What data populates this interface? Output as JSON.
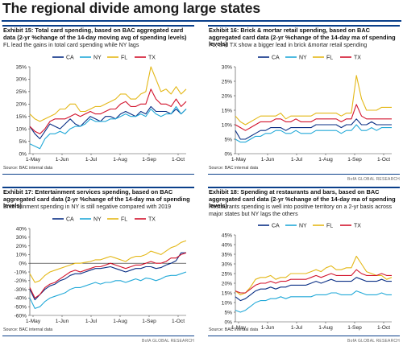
{
  "page": {
    "title": "The regional divide among large states"
  },
  "colors": {
    "CA": "#0a2f85",
    "NY": "#22a9d8",
    "FL": "#e4b818",
    "TX": "#d2142d",
    "accent_rule": "#0a3f8a"
  },
  "panels": [
    {
      "title": "Exhibit 15: Total card spending, based on BAC aggregated card data (2-yr %change of the 14-day moving avg of spending levels)",
      "subtitle": "FL lead the gains in total card spending while NY lags",
      "source": "Source:    BAC internal data",
      "brand": "",
      "chart_data": {
        "type": "line",
        "x_ticks": [
          "1-May",
          "1-Jun",
          "1-Jul",
          "1-Aug",
          "1-Sep",
          "1-Oct"
        ],
        "y_ticks": [
          "0%",
          "5%",
          "10%",
          "15%",
          "20%",
          "25%",
          "30%",
          "35%"
        ],
        "ylim": [
          0,
          35
        ],
        "zero_line": false,
        "legend": "top",
        "series": [
          {
            "name": "CA",
            "values": [
              11,
              8,
              6,
              9,
              12,
              11,
              10,
              12,
              14,
              12,
              11,
              13,
              15,
              14,
              13,
              15,
              15,
              14,
              16,
              17,
              16,
              15,
              17,
              16,
              19,
              17,
              17,
              17,
              16,
              18,
              16,
              18
            ]
          },
          {
            "name": "NY",
            "values": [
              4,
              3,
              2,
              6,
              8,
              8,
              9,
              8,
              10,
              11,
              11,
              12,
              14,
              13,
              13,
              13,
              14,
              14,
              15,
              16,
              15,
              15,
              16,
              15,
              18,
              16,
              15,
              16,
              16,
              19,
              16,
              18
            ]
          },
          {
            "name": "FL",
            "values": [
              16,
              14,
              13,
              14,
              15,
              16,
              18,
              18,
              20,
              20,
              17,
              17,
              18,
              19,
              19,
              20,
              21,
              22,
              24,
              24,
              22,
              22,
              24,
              25,
              35,
              30,
              25,
              26,
              24,
              27,
              24,
              26
            ]
          },
          {
            "name": "TX",
            "values": [
              11,
              9,
              8,
              10,
              13,
              14,
              14,
              14,
              15,
              16,
              15,
              16,
              17,
              16,
              16,
              17,
              18,
              18,
              20,
              21,
              19,
              19,
              20,
              20,
              26,
              22,
              20,
              20,
              19,
              22,
              19,
              21
            ]
          }
        ]
      }
    },
    {
      "title": "Exhibit 16: Brick & mortar retail spending, based on BAC aggregated card data (2-yr %change of the 14-day ma of spending levels)",
      "subtitle": "FL, and TX show a bigger lead in brick &mortar retail spending",
      "source": "Source:    BAC internal data",
      "brand": "BofA GLOBAL RESEARCH",
      "chart_data": {
        "type": "line",
        "x_ticks": [
          "1-May",
          "1-Jun",
          "1-Jul",
          "1-Aug",
          "1-Sep",
          "1-Oct"
        ],
        "y_ticks": [
          "0%",
          "5%",
          "10%",
          "15%",
          "20%",
          "25%",
          "30%"
        ],
        "ylim": [
          0,
          30
        ],
        "zero_line": false,
        "legend": "top",
        "series": [
          {
            "name": "CA",
            "values": [
              8,
              5,
              5,
              6,
              7,
              8,
              8,
              9,
              9,
              9,
              8,
              9,
              9,
              9,
              9,
              9,
              10,
              10,
              10,
              10,
              10,
              9,
              10,
              10,
              12,
              10,
              10,
              11,
              10,
              10,
              10,
              10
            ]
          },
          {
            "name": "NY",
            "values": [
              5,
              4,
              4,
              5,
              6,
              6,
              7,
              7,
              8,
              8,
              7,
              7,
              8,
              7,
              7,
              7,
              8,
              8,
              8,
              8,
              8,
              7,
              8,
              8,
              10,
              8,
              8,
              9,
              8,
              9,
              9,
              9
            ]
          },
          {
            "name": "FL",
            "values": [
              13,
              11,
              10,
              11,
              12,
              13,
              13,
              13,
              13,
              14,
              12,
              13,
              13,
              13,
              13,
              13,
              14,
              14,
              14,
              14,
              14,
              13,
              14,
              14,
              27,
              19,
              15,
              15,
              15,
              16,
              16,
              16
            ]
          },
          {
            "name": "TX",
            "values": [
              10,
              9,
              8,
              9,
              10,
              11,
              11,
              11,
              12,
              12,
              11,
              11,
              12,
              11,
              11,
              11,
              12,
              12,
              12,
              12,
              12,
              11,
              12,
              12,
              17,
              13,
              12,
              12,
              12,
              12,
              12,
              12
            ]
          }
        ]
      }
    },
    {
      "title": "Exhibit 17: Entertainment services spending, based on BAC aggregated card data (2-yr %change of the 14-day ma of spending levels)",
      "subtitle": "Entertainment spending in NY is still negative compared with 2019",
      "source": "Source:    BAC internal data",
      "brand": "BofA GLOBAL RESEARCH",
      "chart_data": {
        "type": "line",
        "x_ticks": [
          "1-May",
          "1-Jun",
          "1-Jul",
          "1-Aug",
          "1-Sep",
          "1-Oct"
        ],
        "y_ticks": [
          "-60%",
          "-50%",
          "-40%",
          "-30%",
          "-20%",
          "-10%",
          "0%",
          "10%",
          "20%",
          "30%",
          "40%"
        ],
        "ylim": [
          -60,
          40
        ],
        "zero_line": true,
        "legend": "top",
        "series": [
          {
            "name": "CA",
            "values": [
              -30,
              -42,
              -36,
              -30,
              -26,
              -24,
              -20,
              -18,
              -14,
              -12,
              -12,
              -10,
              -8,
              -6,
              -6,
              -5,
              -4,
              -6,
              -8,
              -10,
              -8,
              -6,
              -6,
              -4,
              -4,
              -6,
              -5,
              -2,
              0,
              3,
              12,
              12
            ]
          },
          {
            "name": "NY",
            "values": [
              -40,
              -52,
              -50,
              -44,
              -40,
              -38,
              -36,
              -34,
              -30,
              -28,
              -28,
              -26,
              -24,
              -22,
              -24,
              -22,
              -22,
              -20,
              -20,
              -22,
              -20,
              -18,
              -20,
              -17,
              -18,
              -20,
              -18,
              -15,
              -14,
              -14,
              -12,
              -10
            ]
          },
          {
            "name": "FL",
            "values": [
              -12,
              -22,
              -20,
              -14,
              -10,
              -8,
              -6,
              -4,
              -2,
              0,
              0,
              1,
              2,
              4,
              4,
              6,
              8,
              6,
              4,
              2,
              6,
              8,
              8,
              10,
              14,
              12,
              10,
              14,
              18,
              20,
              24,
              26
            ]
          },
          {
            "name": "TX",
            "values": [
              -28,
              -40,
              -36,
              -28,
              -24,
              -22,
              -18,
              -14,
              -10,
              -8,
              -10,
              -8,
              -6,
              -4,
              -4,
              -2,
              0,
              -2,
              -4,
              -6,
              -4,
              -2,
              -2,
              0,
              2,
              0,
              0,
              2,
              6,
              6,
              10,
              12
            ]
          }
        ]
      }
    },
    {
      "title": "Exhibit 18: Spending at restaurants and bars, based on BAC aggregated card data (2-yr %change of the 14-day ma of spending levels)",
      "subtitle": "Restaurants spending is well into positive territory on a 2-yr basis across major states but NY lags the others",
      "source": "Source:    BAC internal data",
      "brand": "BofA GLOBAL RESEARCH",
      "chart_data": {
        "type": "line",
        "x_ticks": [
          "1-May",
          "1-Jun",
          "1-Jul",
          "1-Aug",
          "1-Sep",
          "1-Oct"
        ],
        "y_ticks": [
          "0%",
          "5%",
          "10%",
          "15%",
          "20%",
          "25%",
          "30%",
          "35%",
          "40%",
          "45%"
        ],
        "ylim": [
          0,
          45
        ],
        "zero_line": false,
        "legend": "top",
        "series": [
          {
            "name": "CA",
            "values": [
              13,
              11,
              12,
              14,
              16,
              17,
              17,
              18,
              17,
              18,
              18,
              19,
              19,
              19,
              19,
              20,
              21,
              20,
              21,
              22,
              21,
              21,
              21,
              21,
              23,
              22,
              21,
              21,
              21,
              22,
              21,
              21
            ]
          },
          {
            "name": "NY",
            "values": [
              6,
              5,
              6,
              8,
              10,
              11,
              11,
              12,
              12,
              13,
              12,
              13,
              13,
              13,
              13,
              13,
              14,
              14,
              14,
              15,
              15,
              14,
              14,
              14,
              16,
              15,
              14,
              14,
              14,
              15,
              14,
              14
            ]
          },
          {
            "name": "FL",
            "values": [
              16,
              14,
              15,
              18,
              22,
              23,
              23,
              24,
              22,
              23,
              23,
              25,
              25,
              25,
              25,
              26,
              27,
              26,
              28,
              29,
              27,
              27,
              28,
              28,
              34,
              30,
              26,
              25,
              24,
              24,
              22,
              23
            ]
          },
          {
            "name": "TX",
            "values": [
              16,
              15,
              15,
              17,
              19,
              20,
              20,
              21,
              20,
              21,
              21,
              22,
              22,
              22,
              22,
              23,
              24,
              23,
              24,
              25,
              24,
              24,
              24,
              24,
              27,
              25,
              24,
              24,
              24,
              25,
              24,
              24
            ]
          }
        ]
      }
    }
  ]
}
